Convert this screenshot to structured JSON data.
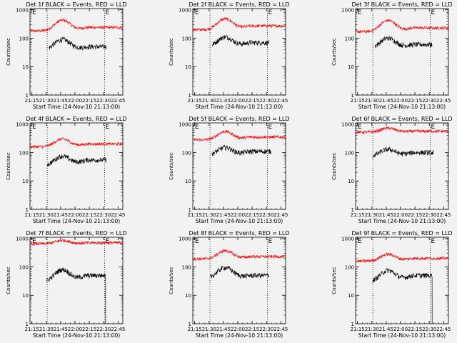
{
  "colors": {
    "background": "#f2f2f2",
    "events": "#000000",
    "lld": "#ff0000",
    "axis": "#000000"
  },
  "chart_data": {
    "type": "line",
    "scale": "log",
    "ylim": [
      1,
      1100
    ],
    "y_tick_labels": [
      "1",
      "10",
      "100",
      "1000"
    ],
    "x_tick_labels": [
      "21:15",
      "21:30",
      "21:45",
      "22:00",
      "22:15",
      "22:30",
      "22:45"
    ],
    "xlabel": "Start Time (24-Nov-10 21:13:00)",
    "ylabel": "Counts/sec",
    "grid": false,
    "marker_lines": [
      {
        "label": "E",
        "x_minutes": 18
      },
      {
        "label": "E",
        "x_minutes": 78
      }
    ],
    "panels": [
      {
        "title": "Det 1f BLACK = Events, RED = LLD",
        "lld": {
          "base": 180,
          "peak": 430,
          "tail": 240
        },
        "events": {
          "start": 20,
          "end": 80,
          "base": 40,
          "peak": 90,
          "tail": 50,
          "drop": false
        }
      },
      {
        "title": "Det 2f BLACK = Events, RED = LLD",
        "lld": {
          "base": 200,
          "peak": 480,
          "tail": 270
        },
        "events": {
          "start": 20,
          "end": 80,
          "base": 50,
          "peak": 110,
          "tail": 70,
          "drop": false
        }
      },
      {
        "title": "Det 3f BLACK = Events, RED = LLD",
        "lld": {
          "base": 170,
          "peak": 420,
          "tail": 230
        },
        "events": {
          "start": 20,
          "end": 80,
          "base": 45,
          "peak": 100,
          "tail": 60,
          "drop": false
        }
      },
      {
        "title": "Det 4f BLACK = Events, RED = LLD",
        "lld": {
          "base": 160,
          "peak": 300,
          "tail": 200
        },
        "events": {
          "start": 18,
          "end": 80,
          "base": 35,
          "peak": 75,
          "tail": 55,
          "drop": false
        }
      },
      {
        "title": "Det 5f BLACK = Events, RED = LLD",
        "lld": {
          "base": 280,
          "peak": 550,
          "tail": 350
        },
        "events": {
          "start": 20,
          "end": 82,
          "base": 80,
          "peak": 150,
          "tail": 110,
          "drop": false
        }
      },
      {
        "title": "Det 6f BLACK = Events, RED = LLD",
        "lld": {
          "base": 520,
          "peak": 720,
          "tail": 560
        },
        "events": {
          "start": 18,
          "end": 82,
          "base": 75,
          "peak": 130,
          "tail": 100,
          "drop": false
        }
      },
      {
        "title": "Det 7f BLACK = Events, RED = LLD",
        "lld": {
          "base": 650,
          "peak": 850,
          "tail": 700
        },
        "events": {
          "start": 17,
          "end": 79,
          "base": 30,
          "peak": 80,
          "tail": 50,
          "drop": true
        }
      },
      {
        "title": "Det 8f BLACK = Events, RED = LLD",
        "lld": {
          "base": 190,
          "peak": 370,
          "tail": 230
        },
        "events": {
          "start": 18,
          "end": 80,
          "base": 40,
          "peak": 95,
          "tail": 50,
          "drop": false
        }
      },
      {
        "title": "Det 9f BLACK = Events, RED = LLD",
        "lld": {
          "base": 160,
          "peak": 280,
          "tail": 200
        },
        "events": {
          "start": 18,
          "end": 80,
          "base": 30,
          "peak": 75,
          "tail": 50,
          "drop": true
        }
      }
    ]
  }
}
